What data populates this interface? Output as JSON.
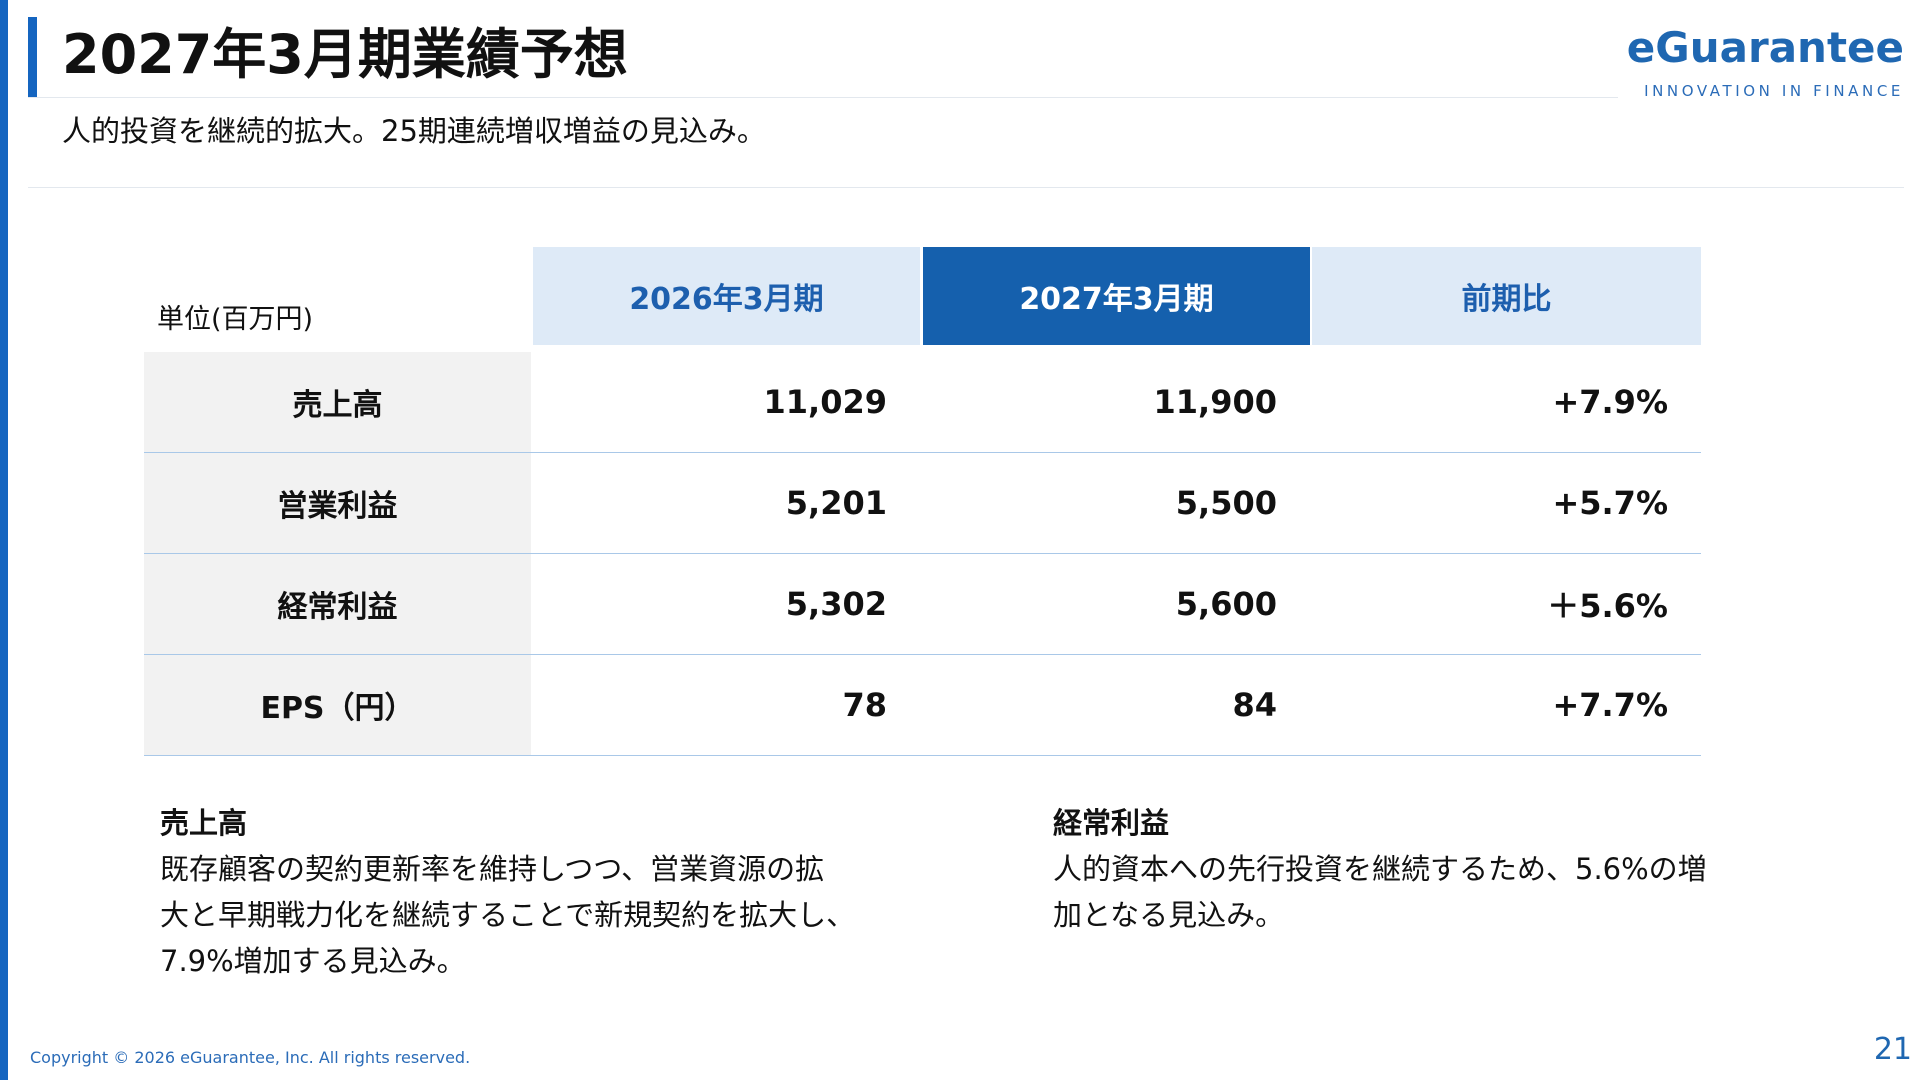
{
  "header": {
    "title": "2027年3月期業績予想",
    "subtitle": "人的投資を継続的拡大。25期連続増収増益の見込み。"
  },
  "logo": {
    "name": "eGuarantee",
    "tagline": "INNOVATION IN FINANCE"
  },
  "table": {
    "unit_label": "単位(百万円)",
    "columns": [
      "2026年3月期",
      "2027年3月期",
      "前期比"
    ],
    "rows": [
      {
        "label": "売上高",
        "values": [
          "11,029",
          "11,900",
          "+7.9%"
        ]
      },
      {
        "label": "営業利益",
        "values": [
          "5,201",
          "5,500",
          "+5.7%"
        ]
      },
      {
        "label": "経常利益",
        "values": [
          "5,302",
          "5,600",
          "＋5.6%"
        ]
      },
      {
        "label": "EPS（円）",
        "values": [
          "78",
          "84",
          "+7.7%"
        ]
      }
    ]
  },
  "notes": [
    {
      "title": "売上高",
      "lines": [
        "既存顧客の契約更新率を維持しつつ、営業資源の拡",
        "大と早期戦力化を継続することで新規契約を拡大し、",
        "7.9%増加する見込み。"
      ]
    },
    {
      "title": "経常利益",
      "lines": [
        "人的資本への先行投資を継続するため、5.6%の増",
        "加となる見込み。"
      ]
    }
  ],
  "footer": {
    "copyright": "Copyright © 2026 eGuarantee, Inc. All rights reserved.",
    "page_number": "21"
  },
  "colors": {
    "accent": "#1565c0",
    "header_light": "#deeaf7",
    "header_dark": "#1560ad"
  }
}
